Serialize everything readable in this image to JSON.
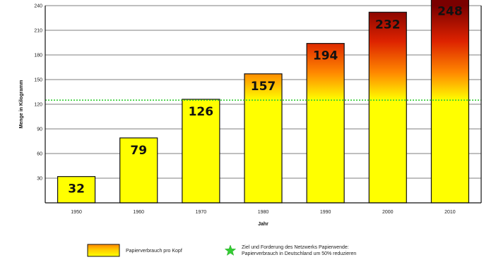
{
  "chart_data": {
    "type": "bar",
    "categories": [
      "1950",
      "1960",
      "1970",
      "1980",
      "1990",
      "2000",
      "2010"
    ],
    "values": [
      32,
      79,
      126,
      157,
      194,
      232,
      248
    ],
    "data_labels": [
      "32",
      "79",
      "126",
      "157",
      "194",
      "232",
      "248"
    ],
    "xlabel": "Jahr",
    "ylabel": "Menge in Kilogramm",
    "ylim": [
      0,
      240
    ],
    "yticks": [
      30,
      60,
      90,
      120,
      150,
      180,
      210,
      240
    ],
    "target_value": 125,
    "grid": true,
    "legend_position": "bottom",
    "colors": {
      "bar_low": "#ffff00",
      "bar_mid": "#ff8800",
      "bar_high": "#8b0000",
      "target_line": "#33cc33"
    },
    "legend": [
      {
        "name": "Papierverbrauch pro Kopf",
        "marker": "gradient-swatch"
      },
      {
        "name": "Ziel und Forderung des Netzwerks Papierwende: Papierverbrauch in Deutschland um 50% reduzieren",
        "marker": "green-star"
      }
    ]
  }
}
